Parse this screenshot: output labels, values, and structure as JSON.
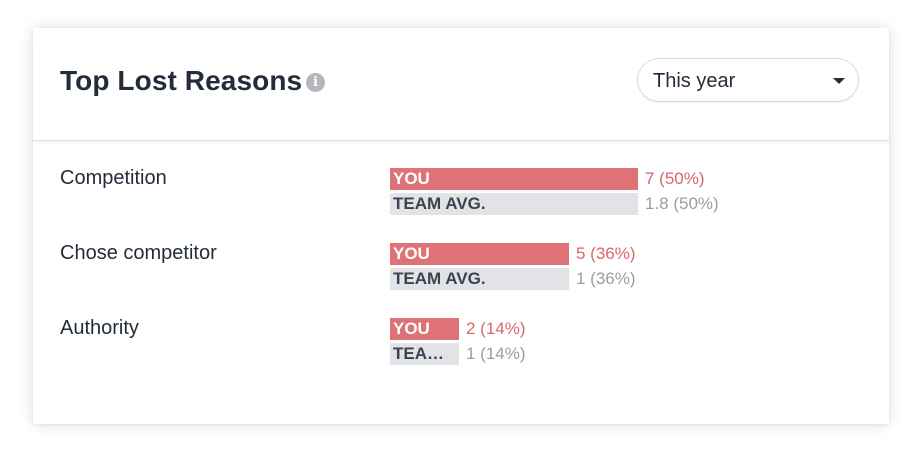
{
  "header": {
    "title": "Top Lost Reasons",
    "info_icon": "info-icon",
    "period": {
      "selected": "This year",
      "icon": "caret-down-icon"
    }
  },
  "colors": {
    "you_bar": "#df7276",
    "you_text": "#d9676c",
    "team_bar": "#e2e3e7",
    "team_text": "#9a9ca4",
    "title_text": "#232d3a"
  },
  "reasons": [
    {
      "label": "Competition",
      "you": {
        "name": "YOU",
        "value": "7 (50%)",
        "fraction": 0.5
      },
      "team": {
        "name": "TEAM AVG.",
        "value": "1.8 (50%)",
        "fraction": 0.5
      }
    },
    {
      "label": "Chose competitor",
      "you": {
        "name": "YOU",
        "value": "5 (36%)",
        "fraction": 0.36
      },
      "team": {
        "name": "TEAM AVG.",
        "value": "1 (36%)",
        "fraction": 0.36
      }
    },
    {
      "label": "Authority",
      "you": {
        "name": "YOU",
        "value": "2 (14%)",
        "fraction": 0.14
      },
      "team": {
        "name": "TEAM ...",
        "value": "1 (14%)",
        "fraction": 0.14
      }
    }
  ]
}
